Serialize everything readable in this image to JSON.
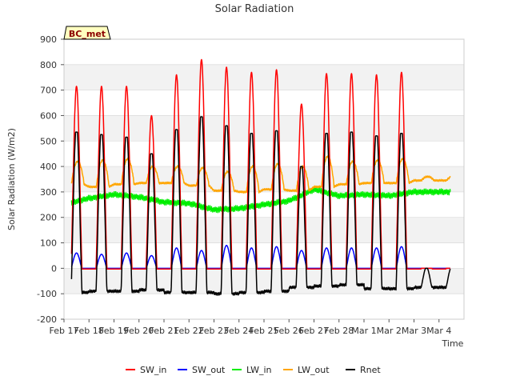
{
  "chart_data": {
    "type": "line",
    "title": "Solar Radiation",
    "xlabel": "Time",
    "ylabel": "Solar Radiation (W/m2)",
    "station_badge": "BC_met",
    "xlim_days": [
      0,
      16
    ],
    "ylim": [
      -200,
      900
    ],
    "yticks": [
      -200,
      -100,
      0,
      100,
      200,
      300,
      400,
      500,
      600,
      700,
      800,
      900
    ],
    "xticks": [
      "Feb 17",
      "Feb 18",
      "Feb 19",
      "Feb 20",
      "Feb 21",
      "Feb 22",
      "Feb 23",
      "Feb 24",
      "Feb 25",
      "Feb 26",
      "Feb 27",
      "Feb 28",
      "Mar 1",
      "Mar 2",
      "Mar 3",
      "Mar 4"
    ],
    "data_start_day": 0.3,
    "data_end_day": 15.45,
    "grid": "horizontal-bands",
    "legend_position": "bottom",
    "days": [
      "Feb 17",
      "Feb 18",
      "Feb 19",
      "Feb 20",
      "Feb 21",
      "Feb 22",
      "Feb 23",
      "Feb 24",
      "Feb 25",
      "Feb 26",
      "Feb 27",
      "Feb 28",
      "Mar 1",
      "Mar 2",
      "Mar 3"
    ],
    "daily": {
      "sw_in_peak": [
        715,
        715,
        715,
        600,
        760,
        820,
        790,
        770,
        780,
        645,
        765,
        765,
        760,
        770,
        0
      ],
      "sw_out_peak": [
        60,
        55,
        60,
        50,
        80,
        70,
        90,
        80,
        85,
        70,
        80,
        80,
        80,
        85,
        0
      ],
      "rnet_peak": [
        535,
        525,
        515,
        450,
        545,
        595,
        560,
        530,
        540,
        400,
        530,
        535,
        520,
        530,
        0
      ],
      "rnet_night": [
        -95,
        -90,
        -90,
        -85,
        -95,
        -95,
        -100,
        -95,
        -90,
        -75,
        -70,
        -65,
        -80,
        -80,
        -75
      ],
      "lw_in_level": [
        250,
        275,
        290,
        280,
        260,
        255,
        230,
        235,
        250,
        265,
        310,
        285,
        290,
        285,
        300
      ],
      "lw_out_day": [
        420,
        425,
        430,
        400,
        400,
        395,
        380,
        400,
        410,
        400,
        440,
        420,
        425,
        430,
        360
      ],
      "lw_out_night": [
        330,
        320,
        330,
        335,
        335,
        325,
        305,
        300,
        310,
        305,
        320,
        330,
        335,
        335,
        345
      ]
    },
    "series": [
      {
        "name": "SW_in",
        "color": "#ff0000"
      },
      {
        "name": "SW_out",
        "color": "#0000ff"
      },
      {
        "name": "LW_in",
        "color": "#00ee00"
      },
      {
        "name": "LW_out",
        "color": "#ffa500"
      },
      {
        "name": "Rnet",
        "color": "#000000"
      }
    ]
  }
}
